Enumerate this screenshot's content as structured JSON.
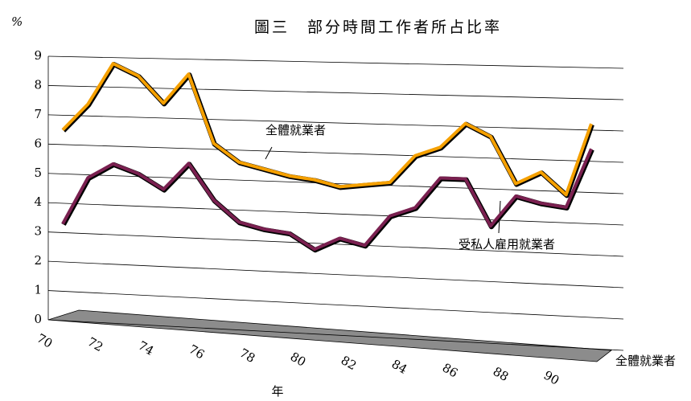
{
  "chart_data": {
    "type": "line",
    "title": "圖三　部分時間工作者所占比率",
    "y_label": "%",
    "x_label": "年",
    "z_label": "全體就業者",
    "categories": [
      "70",
      null,
      "72",
      null,
      "74",
      null,
      "76",
      null,
      "78",
      null,
      "80",
      null,
      "82",
      null,
      "84",
      null,
      "86",
      null,
      "88",
      null,
      "90",
      null
    ],
    "series": [
      {
        "color": "#f5a000",
        "values": [
          6.5,
          7.4,
          8.8,
          8.4,
          7.5,
          8.5,
          6.2,
          5.6,
          5.4,
          5.2,
          5.1,
          4.9,
          5.0,
          5.1,
          6.0,
          6.3,
          7.1,
          6.7,
          5.2,
          5.6,
          4.9,
          7.2
        ]
      },
      {
        "color": "#7a2050",
        "values": [
          3.3,
          4.9,
          5.4,
          5.1,
          4.6,
          5.5,
          4.3,
          3.6,
          3.4,
          3.3,
          2.8,
          3.2,
          3.0,
          4.0,
          4.3,
          5.3,
          5.3,
          3.8,
          4.8,
          4.6,
          4.5,
          6.4
        ]
      }
    ],
    "annotations": [
      {
        "text": "全體就業者"
      },
      {
        "text": "受私人雇用就業者"
      }
    ],
    "ylim": [
      0,
      9
    ],
    "yticks": [
      0,
      1,
      2,
      3,
      4,
      5,
      6,
      7,
      8,
      9
    ],
    "grid": true
  }
}
